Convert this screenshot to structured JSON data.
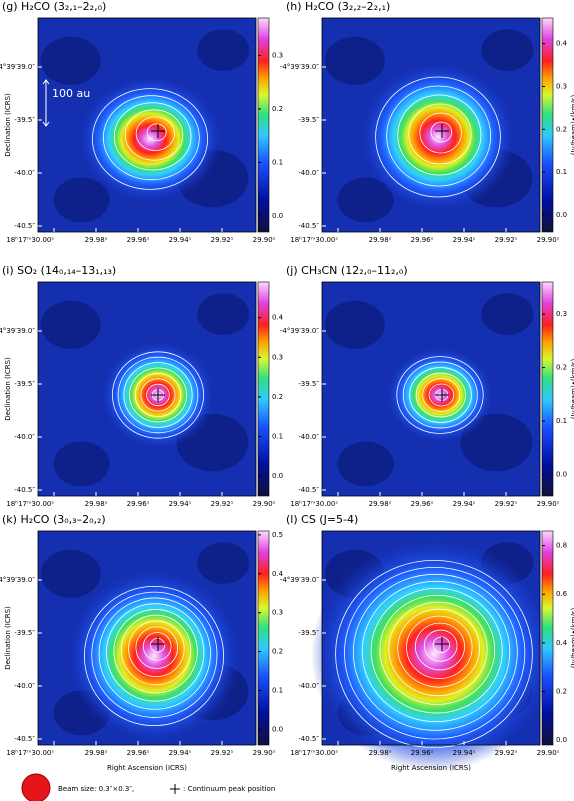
{
  "chart_data": [
    {
      "type": "heatmap",
      "title": "(g) H₂CO (3₂,₁–2₂,₀)",
      "ylabel": "Declination (ICRS)",
      "annotation": "100 au",
      "xtick_labels": [
        "18ʰ17ᵐ30.00ˢ",
        "29.98ˢ",
        "29.96ˢ",
        "29.94ˢ",
        "29.92ˢ",
        "29.90ˢ"
      ],
      "ytick_labels": [
        "-4°39′39.0″",
        "-39.5″",
        "-40.0″",
        "-40.5″"
      ],
      "zlim": [
        -0.03,
        0.37
      ],
      "zticks": [
        {
          "value": 0,
          "label": "0.0"
        },
        0.1,
        0.2,
        0.3
      ]
    },
    {
      "type": "heatmap",
      "title": "(h) H₂CO (3₂,₂–2₂,₁)",
      "colorbar_label": "(Jy/beam)•(km/s)",
      "xtick_labels": [
        "18ʰ17ᵐ30.00ˢ",
        "29.98ˢ",
        "29.96ˢ",
        "29.94ˢ",
        "29.92ˢ",
        "29.90ˢ"
      ],
      "ytick_labels": [
        "-4°39′39.0″",
        "-39.5″",
        "-40.0″",
        "-40.5″"
      ],
      "zlim": [
        -0.04,
        0.46
      ],
      "zticks": [
        {
          "value": 0,
          "label": "0.0"
        },
        0.1,
        0.2,
        0.3,
        0.4
      ]
    },
    {
      "type": "heatmap",
      "title": "(i) SO₂ (14₀,₁₄–13₁,₁₃)",
      "ylabel": "Declination (ICRS)",
      "xtick_labels": [
        "18ʰ17ᵐ30.00ˢ",
        "29.98ˢ",
        "29.96ˢ",
        "29.94ˢ",
        "29.92ˢ",
        "29.90ˢ"
      ],
      "ytick_labels": [
        "-4°39′39.0″",
        "-39.5″",
        "-40.0″",
        "-40.5″"
      ],
      "zlim": [
        -0.05,
        0.49
      ],
      "zticks": [
        {
          "value": 0,
          "label": "0.0"
        },
        0.1,
        0.2,
        0.3,
        0.4
      ]
    },
    {
      "type": "heatmap",
      "title": "(j) CH₃CN (12₂,₀–11₂,₀)",
      "colorbar_label": "(Jy/beam)•(km/s)",
      "xtick_labels": [
        "18ʰ17ᵐ30.00ˢ",
        "29.98ˢ",
        "29.96ˢ",
        "29.94ˢ",
        "29.92ˢ",
        "29.90ˢ"
      ],
      "ytick_labels": [
        "-4°39′39.0″",
        "-39.5″",
        "-40.0″",
        "-40.5″"
      ],
      "zlim": [
        -0.04,
        0.36
      ],
      "zticks": [
        {
          "value": 0,
          "label": "0.0"
        },
        0.1,
        0.2,
        0.3
      ]
    },
    {
      "type": "heatmap",
      "title": "(k) H₂CO (3₀,₃–2₀,₂)",
      "ylabel": "Declination (ICRS)",
      "xlabel": "Right Ascension (ICRS)",
      "xtick_labels": [
        "18ʰ17ᵐ30.00ˢ",
        "29.98ˢ",
        "29.96ˢ",
        "29.94ˢ",
        "29.92ˢ",
        "29.90ˢ"
      ],
      "ytick_labels": [
        "-4°39′39.0″",
        "-39.5″",
        "-40.0″",
        "-40.5″"
      ],
      "zlim": [
        -0.04,
        0.51
      ],
      "zticks": [
        {
          "value": 0,
          "label": "0.0"
        },
        0.1,
        0.2,
        0.3,
        0.4,
        0.5
      ]
    },
    {
      "type": "heatmap",
      "title": "(l) CS (J=5-4)",
      "colorbar_label": "(Jy/beam)•(km/s)",
      "xlabel": "Right Ascension (ICRS)",
      "xtick_labels": [
        "18ʰ17ᵐ30.00ˢ",
        "29.98ˢ",
        "29.96ˢ",
        "29.94ˢ",
        "29.92ˢ",
        "29.90ˢ"
      ],
      "ytick_labels": [
        "-4°39′39.0″",
        "-39.5″",
        "-40.0″",
        "-40.5″"
      ],
      "zlim": [
        -0.02,
        0.86
      ],
      "zticks": [
        {
          "value": 0,
          "label": "0.0"
        },
        0.2,
        0.4,
        0.6,
        0.8
      ]
    }
  ],
  "legend": {
    "beam": "Beam size: 0.3″×0.3″,",
    "peak": ": Continuum peak position"
  }
}
